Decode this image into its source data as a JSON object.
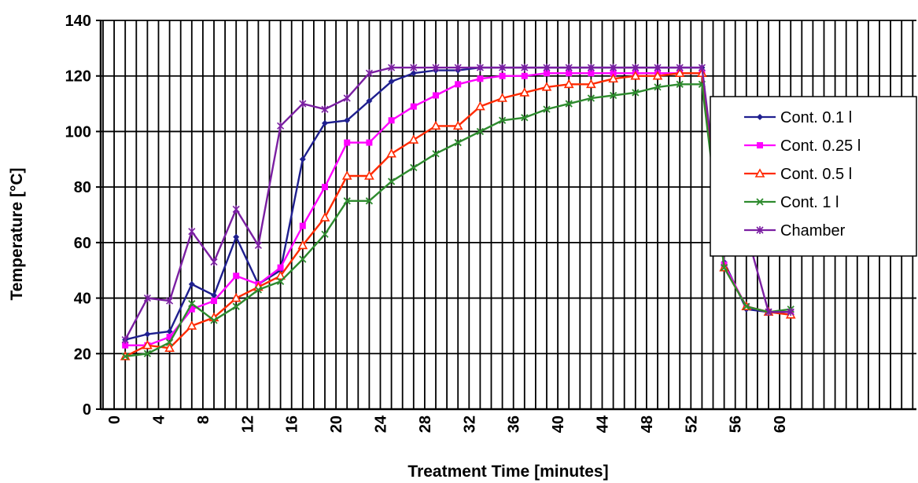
{
  "chart_data": {
    "type": "line",
    "xlabel": "Treatment Time [minutes]",
    "ylabel": "Temperature [°C]",
    "xlim": [
      -1,
      75
    ],
    "ylim": [
      0,
      140
    ],
    "x_ticks": [
      0,
      4,
      8,
      12,
      16,
      20,
      24,
      28,
      32,
      36,
      40,
      44,
      48,
      52,
      56,
      60
    ],
    "y_ticks": [
      0,
      20,
      40,
      60,
      80,
      100,
      120,
      140
    ],
    "grid": "vertical lines every minute, horizontal lines every 20",
    "legend_position": "right",
    "series": [
      {
        "name": "Cont. 0.1 l",
        "color": "#1f1f8f",
        "marker": "diamond",
        "points": [
          [
            1,
            25
          ],
          [
            3,
            27
          ],
          [
            5,
            28
          ],
          [
            7,
            45
          ],
          [
            9,
            41
          ],
          [
            11,
            62
          ],
          [
            13,
            45
          ],
          [
            15,
            50
          ],
          [
            17,
            90
          ],
          [
            19,
            103
          ],
          [
            21,
            104
          ],
          [
            23,
            111
          ],
          [
            25,
            118
          ],
          [
            27,
            121
          ],
          [
            29,
            122
          ],
          [
            31,
            122
          ],
          [
            33,
            123
          ],
          [
            35,
            123
          ],
          [
            37,
            123
          ],
          [
            39,
            123
          ],
          [
            41,
            123
          ],
          [
            43,
            123
          ],
          [
            45,
            123
          ],
          [
            47,
            123
          ],
          [
            49,
            123
          ],
          [
            51,
            123
          ],
          [
            53,
            123
          ],
          [
            55,
            53
          ],
          [
            57,
            36
          ],
          [
            59,
            35
          ],
          [
            61,
            35
          ]
        ]
      },
      {
        "name": "Cont. 0.25 l",
        "color": "#ff00ff",
        "marker": "square",
        "points": [
          [
            1,
            23
          ],
          [
            3,
            23
          ],
          [
            5,
            26
          ],
          [
            7,
            36
          ],
          [
            9,
            39
          ],
          [
            11,
            48
          ],
          [
            13,
            45
          ],
          [
            15,
            51
          ],
          [
            17,
            66
          ],
          [
            19,
            80
          ],
          [
            21,
            96
          ],
          [
            23,
            96
          ],
          [
            25,
            104
          ],
          [
            27,
            109
          ],
          [
            29,
            113
          ],
          [
            31,
            117
          ],
          [
            33,
            119
          ],
          [
            35,
            120
          ],
          [
            37,
            120
          ],
          [
            39,
            121
          ],
          [
            41,
            121
          ],
          [
            43,
            121
          ],
          [
            45,
            121
          ],
          [
            47,
            121
          ],
          [
            49,
            121
          ],
          [
            51,
            121
          ],
          [
            53,
            121
          ],
          [
            55,
            52
          ],
          [
            57,
            37
          ],
          [
            59,
            35
          ],
          [
            61,
            35
          ]
        ]
      },
      {
        "name": "Cont. 0.5 l",
        "color": "#ff2a00",
        "marker": "triangle",
        "points": [
          [
            1,
            19
          ],
          [
            3,
            23
          ],
          [
            5,
            22
          ],
          [
            7,
            30
          ],
          [
            9,
            33
          ],
          [
            11,
            40
          ],
          [
            13,
            44
          ],
          [
            15,
            48
          ],
          [
            17,
            59
          ],
          [
            19,
            69
          ],
          [
            21,
            84
          ],
          [
            23,
            84
          ],
          [
            25,
            92
          ],
          [
            27,
            97
          ],
          [
            29,
            102
          ],
          [
            31,
            102
          ],
          [
            33,
            109
          ],
          [
            35,
            112
          ],
          [
            37,
            114
          ],
          [
            39,
            116
          ],
          [
            41,
            117
          ],
          [
            43,
            117
          ],
          [
            45,
            119
          ],
          [
            47,
            120
          ],
          [
            49,
            120
          ],
          [
            51,
            121
          ],
          [
            53,
            121
          ],
          [
            55,
            51
          ],
          [
            57,
            37
          ],
          [
            59,
            35
          ],
          [
            61,
            34
          ]
        ]
      },
      {
        "name": "Cont. 1 l",
        "color": "#2e8b2e",
        "marker": "x",
        "points": [
          [
            1,
            19
          ],
          [
            3,
            20
          ],
          [
            5,
            24
          ],
          [
            7,
            38
          ],
          [
            9,
            32
          ],
          [
            11,
            37
          ],
          [
            13,
            43
          ],
          [
            15,
            46
          ],
          [
            17,
            54
          ],
          [
            19,
            63
          ],
          [
            21,
            75
          ],
          [
            23,
            75
          ],
          [
            25,
            82
          ],
          [
            27,
            87
          ],
          [
            29,
            92
          ],
          [
            31,
            96
          ],
          [
            33,
            100
          ],
          [
            35,
            104
          ],
          [
            37,
            105
          ],
          [
            39,
            108
          ],
          [
            41,
            110
          ],
          [
            43,
            112
          ],
          [
            45,
            113
          ],
          [
            47,
            114
          ],
          [
            49,
            116
          ],
          [
            51,
            117
          ],
          [
            53,
            117
          ],
          [
            55,
            51
          ],
          [
            57,
            37
          ],
          [
            59,
            35
          ],
          [
            61,
            36
          ]
        ]
      },
      {
        "name": "Chamber",
        "color": "#7b1fa2",
        "marker": "star",
        "points": [
          [
            1,
            25
          ],
          [
            3,
            40
          ],
          [
            5,
            39
          ],
          [
            7,
            64
          ],
          [
            9,
            53
          ],
          [
            11,
            72
          ],
          [
            13,
            59
          ],
          [
            15,
            102
          ],
          [
            17,
            110
          ],
          [
            19,
            108
          ],
          [
            21,
            112
          ],
          [
            23,
            121
          ],
          [
            25,
            123
          ],
          [
            27,
            123
          ],
          [
            29,
            123
          ],
          [
            31,
            123
          ],
          [
            33,
            123
          ],
          [
            35,
            123
          ],
          [
            37,
            123
          ],
          [
            39,
            123
          ],
          [
            41,
            123
          ],
          [
            43,
            123
          ],
          [
            45,
            123
          ],
          [
            47,
            123
          ],
          [
            49,
            123
          ],
          [
            51,
            123
          ],
          [
            53,
            123
          ],
          [
            55,
            58
          ],
          [
            57,
            64
          ],
          [
            59,
            35
          ],
          [
            61,
            35
          ]
        ]
      }
    ]
  }
}
